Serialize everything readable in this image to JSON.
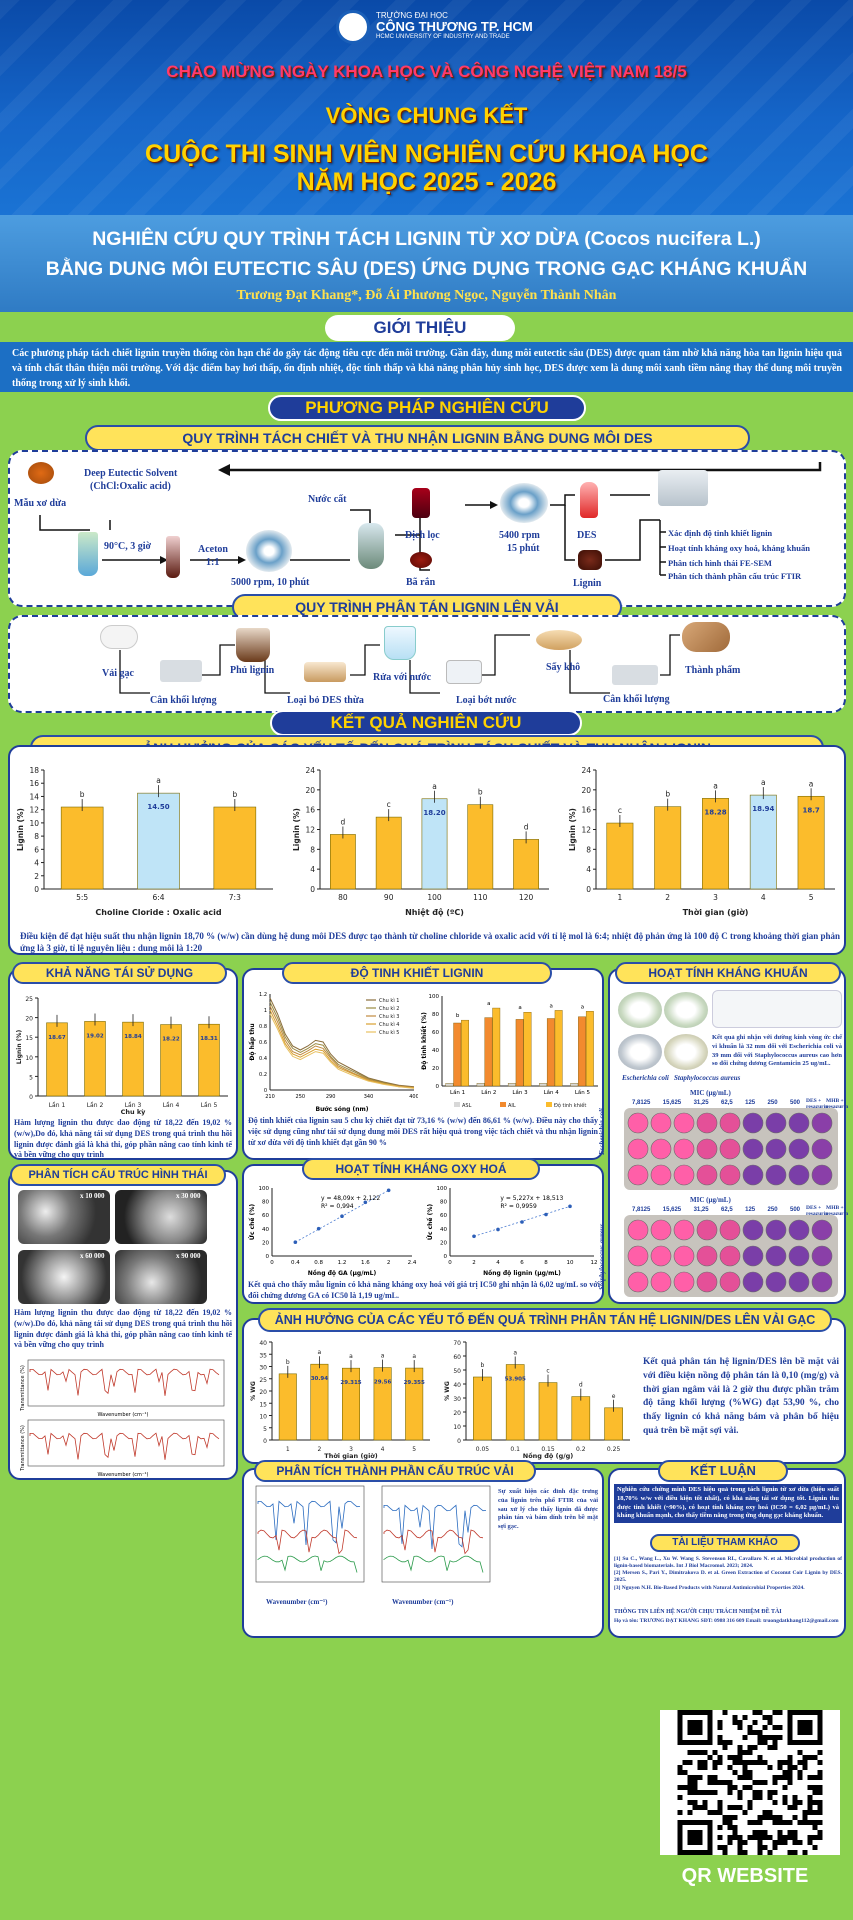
{
  "header": {
    "logo_line1": "TRƯỜNG ĐẠI HỌC",
    "logo_line2": "CÔNG THƯƠNG TP. HCM",
    "logo_line3": "HCMC UNIVERSITY OF INDUSTRY AND TRADE",
    "banner1": "CHÀO MỪNG NGÀY KHOA HỌC VÀ CÔNG NGHỆ VIỆT NAM 18/5",
    "banner2": "VÒNG CHUNG KẾT",
    "banner3": "CUỘC THI SINH VIÊN NGHIÊN CỨU KHOA HỌC",
    "banner4": "NĂM HỌC 2025 - 2026"
  },
  "title": {
    "line1": "NGHIÊN CỨU QUY TRÌNH TÁCH LIGNIN TỪ XƠ DỪA (Cocos nucifera L.)",
    "line2": "BẰNG DUNG MÔI EUTECTIC SÂU (DES) ỨNG DỤNG TRONG GẠC KHÁNG KHUẨN",
    "authors": "Trương Đạt Khang*, Đỗ Ái Phương Ngọc, Nguyễn Thành Nhân"
  },
  "intro": {
    "heading": "GIỚI THIỆU",
    "text": "Các phương pháp tách chiết lignin truyền thống còn hạn chế do gây tác động tiêu cực đến môi trường. Gần đây, dung môi eutectic sâu (DES) được quan tâm nhờ khả năng hòa tan lignin hiệu quả và tính chất thân thiện môi trường. Với đặc điểm bay hơi thấp, ổn định nhiệt, độc tính thấp và khả năng phân hủy sinh học, DES được xem là dung môi xanh tiềm năng thay thế dung môi truyền thống trong xử lý sinh khối."
  },
  "methods": {
    "heading": "PHƯƠNG PHÁP NGHIÊN CỨU",
    "sub1": "QUY TRÌNH TÁCH CHIẾT VÀ THU NHẬN LIGNIN BẰNG DUNG MÔI DES",
    "step_sample": "Mẫu xơ dừa",
    "step_des": "Deep Eutectic Solvent",
    "step_des2": "(ChCl:Oxalic acid)",
    "step_heat": "90°C, 3 giờ",
    "step_acetone": "Aceton",
    "step_ratio": "1:1",
    "step_centri1": "5000 rpm, 10 phút",
    "step_water": "Nước cất",
    "step_filtrate": "Dịch lọc",
    "step_residue": "Bã rắn",
    "step_centri2a": "5400 rpm",
    "step_centri2b": "15 phút",
    "step_des_rec": "DES",
    "step_lignin": "Lignin",
    "analysis": [
      "Xác định độ tinh khiết lignin",
      "Hoạt tính kháng oxy hoá, kháng khuẩn",
      "Phân tích hình thái FE-SEM",
      "Phân tích thành phần cấu trúc FTIR"
    ],
    "sub2": "QUY TRÌNH PHÂN TÁN LIGNIN LÊN VẢI",
    "d_gauze": "Vải gạc",
    "d_weigh1": "Cân khối lượng",
    "d_coat": "Phủ lignin",
    "d_remove": "Loại bỏ DES thừa",
    "d_wash": "Rửa với nước",
    "d_drain": "Loại bớt nước",
    "d_dry": "Sấy khô",
    "d_weigh2": "Cân khối lượng",
    "d_product": "Thành phẩm"
  },
  "results": {
    "heading": "KẾT QUẢ NGHIÊN CỨU",
    "sub1": "ẢNH HƯỞNG CỦA CÁC YẾU TỐ ĐẾN QUÁ TRÌNH TÁCH CHIẾT VÀ THU NHẬN LIGNIN",
    "caption1": "Điều kiện để đạt hiệu suất thu nhận lignin 18,70 % (w/w) cần dùng hệ dung môi DES được tạo thành từ choline chloride và oxalic acid với tỉ lệ mol là 6:4; nhiệt độ phản ứng là 100 độ C trong khoảng thời gian phản ứng là 3 giờ, tỉ lệ nguyên liệu : dung môi là 1:20",
    "reuse_heading": "KHẢ NĂNG TÁI SỬ DỤNG",
    "reuse_caption": "Hàm lượng lignin thu được dao động từ 18,22 đến 19,02 % (w/w),Do đó, khả năng tái sử dụng DES trong quá trình thu hồi lignin được đánh giá là khả thi, góp phần nâng cao tính kinh tế và bền vững cho quy trình",
    "purity_heading": "ĐỘ TINH KHIẾT LIGNIN",
    "purity_caption": "Độ tinh khiết của lignin sau 5 chu kỳ chiết đạt từ 73,16 % (w/w) đến 86,61 % (w/w). Điều này cho thấy việc sử dụng cũng như tái sử dụng dung môi DES rất hiệu quả trong việc tách chiết và thu nhận lignin từ xơ dừa với độ tinh khiết đạt gần 90 %",
    "antibac_heading": "HOẠT TÍNH KHÁNG KHUẨN",
    "antibac_caption": "Kết quả ghi nhận với đường kính vòng ức chế vi khuẩn là 32 mm đối với Escherichia coli và 39 mm đối với Staphylococcus aureus cao hơn so đối chứng dương Gentamicin 25 ug/mL.",
    "antibac_ecoli": "Escherichia coli",
    "antibac_saureus": "Staphylococcus aureus",
    "mic_label": "MIC (µg/mL)",
    "mic_conc": [
      "7,8125",
      "15,625",
      "31,25",
      "62,5",
      "125",
      "250",
      "500"
    ],
    "mic_des": "DES + resazurin",
    "mic_mhb": "MHB + resazurin",
    "sem_heading": "PHÂN TÍCH CẤU TRÚC HÌNH THÁI",
    "sem_mags": [
      "x 10 000",
      "x 30 000",
      "x 60 000",
      "x 90 000"
    ],
    "sem_caption": "Hàm lượng lignin thu được dao động từ 18,22 đến 19,02 % (w/w).Do đó, khả năng tái sử dụng DES trong quá trình thu hồi lignin được đánh giá là khả thi, góp phần nâng cao tính kinh tế và bền vững cho quy trình",
    "ftir_xlabel": "Wavenumber (cm⁻¹)",
    "ftir_ylabel": "Transmittance (%)",
    "antiox_heading": "HOẠT TÍNH KHÁNG OXY HOÁ",
    "antiox_caption": "Kết quả cho thấy mẫu lignin có khả năng kháng oxy hoá với giá trị IC50 ghi nhận là 6,02 ug/mL so với đối chứng dương GA có IC50 là 1,19 ug/mL.",
    "disp_heading": "ẢNH HƯỞNG CỦA CÁC YẾU TỐ ĐẾN QUÁ TRÌNH PHÂN TÁN HỆ LIGNIN/DES LÊN VẢI GẠC",
    "disp_caption": "Kết quả phân tán hệ lignin/DES lên bề mặt vải với điều kiện nồng độ phân tán là 0,10 (mg/g) và thời gian ngâm vải là 2 giờ thu được phần trăm độ tăng khối lượng (%WG) đạt 53,90 %, cho thấy lignin có khả năng bám và phân bố hiệu quả trên bề mặt sợi vải.",
    "fabric_heading": "PHÂN TÍCH THÀNH PHẦN CẤU TRÚC VẢI",
    "fabric_caption": "Sự xuất hiện các đỉnh đặc trưng của lignin trên phổ FTIR của vải sau xử lý cho thấy lignin đã được phân tán và bám dính trên bề mặt sợi gạc.",
    "fabric_xlabel": "Wavenumber (cm⁻¹)"
  },
  "conclusion": {
    "heading": "KẾT LUẬN",
    "text": "Nghiên cứu chứng minh DES hiệu quả trong tách lignin từ xơ dừa (hiệu suất 18,70% w/w với điều kiện tốt nhất), có khả năng tái sử dụng tốt. Lignin thu được tinh khiết (~90%), có hoạt tính kháng oxy hoá (IC50 = 6,02 µg/mL) và kháng khuẩn mạnh, cho thấy tiềm năng trong ứng dụng gạc kháng khuẩn.",
    "ref_heading": "TÀI LIỆU THAM KHẢO",
    "refs": "[1] Su C., Wang L., Xu W. Wang S. Stevenson RL, Cavallaro N. et al. Microbial production of lignin-based biomaterials. Int J Biol Macromol. 2023; 2024.\n[2] Mersen S., Pari Y., Dimitrakova D. et al. Green Extraction of Coconut Coir Lignin by DES. 2025.\n[3] Nguyen N.H. Bio-Based Products with Natural Antimicrobial Properties 2024.",
    "contact_title": "THÔNG TIN LIÊN HỆ NGƯỜI CHỊU TRÁCH NHIỆM ĐỀ TÀI",
    "contact": "Họ và tên: TRƯƠNG ĐẠT KHANG     SĐT: 0988 316 609     Email: truongdatkhang112@gmail.com"
  },
  "qr_label": "QR WEBSITE",
  "chart_data": [
    {
      "type": "bar",
      "xlabel": "Choline Cloride : Oxalic acid",
      "ylabel": "Lignin (%)",
      "categories": [
        "5:5",
        "6:4",
        "7:3"
      ],
      "values": [
        12.4,
        14.5,
        12.4
      ],
      "data_labels": [
        "",
        "14.50",
        ""
      ],
      "letters": [
        "b",
        "a",
        "b"
      ],
      "ylim": [
        0,
        18
      ],
      "yticks": [
        0,
        2,
        4,
        6,
        8,
        10,
        12,
        14,
        16,
        18
      ]
    },
    {
      "type": "bar",
      "xlabel": "Nhiệt độ (ºC)",
      "ylabel": "Lignin (%)",
      "categories": [
        "80",
        "90",
        "100",
        "110",
        "120"
      ],
      "values": [
        11,
        14.5,
        18.2,
        17,
        10
      ],
      "data_labels": [
        "",
        "",
        "18.20",
        "",
        ""
      ],
      "letters": [
        "d",
        "c",
        "a",
        "b",
        "d"
      ],
      "ylim": [
        0,
        24
      ],
      "yticks": [
        0,
        4,
        8,
        12,
        16,
        20,
        24
      ]
    },
    {
      "type": "bar",
      "xlabel": "Thời gian (giờ)",
      "ylabel": "Lignin (%)",
      "categories": [
        "1",
        "2",
        "3",
        "4",
        "5"
      ],
      "values": [
        13.3,
        16.6,
        18.28,
        18.94,
        18.7
      ],
      "data_labels": [
        "",
        "",
        "18.28",
        "18.94",
        "18.7"
      ],
      "letters": [
        "c",
        "b",
        "a",
        "a",
        "a"
      ],
      "ylim": [
        0,
        24
      ],
      "yticks": [
        0,
        4,
        8,
        12,
        16,
        20,
        24
      ]
    },
    {
      "type": "bar",
      "xlabel": "Chu kỳ",
      "ylabel": "Lignin (%)",
      "categories": [
        "Lần 1",
        "Lần 2",
        "Lần 3",
        "Lần 4",
        "Lần 5"
      ],
      "values": [
        18.67,
        19.02,
        18.84,
        18.22,
        18.31
      ],
      "data_labels": [
        "18.67",
        "19.02",
        "18.84",
        "18.22",
        "18.31"
      ],
      "ylim": [
        0,
        25
      ],
      "yticks": [
        0,
        5,
        10,
        15,
        20,
        25
      ]
    },
    {
      "type": "line",
      "xlabel": "Bước sóng (nm)",
      "ylabel": "Độ hấp thu",
      "x": [
        210,
        220,
        230,
        240,
        250,
        260,
        270,
        280,
        290,
        300,
        320,
        340,
        360,
        380,
        400
      ],
      "series": [
        {
          "name": "Chu kì 1",
          "values": [
            1.15,
            0.95,
            0.7,
            0.55,
            0.5,
            0.55,
            0.62,
            0.6,
            0.45,
            0.35,
            0.25,
            0.15,
            0.1,
            0.06,
            0.04
          ]
        },
        {
          "name": "Chu kì 2",
          "values": [
            1.1,
            0.9,
            0.66,
            0.52,
            0.47,
            0.52,
            0.58,
            0.56,
            0.42,
            0.32,
            0.23,
            0.14,
            0.09,
            0.05,
            0.03
          ]
        },
        {
          "name": "Chu kì 3",
          "values": [
            1.05,
            0.85,
            0.62,
            0.48,
            0.44,
            0.49,
            0.55,
            0.52,
            0.4,
            0.3,
            0.21,
            0.13,
            0.08,
            0.05,
            0.03
          ]
        },
        {
          "name": "Chu kì 4",
          "values": [
            1.0,
            0.8,
            0.58,
            0.45,
            0.41,
            0.46,
            0.51,
            0.49,
            0.37,
            0.28,
            0.2,
            0.12,
            0.08,
            0.04,
            0.03
          ]
        },
        {
          "name": "Chu kì 5",
          "values": [
            0.95,
            0.76,
            0.55,
            0.42,
            0.38,
            0.43,
            0.48,
            0.46,
            0.35,
            0.26,
            0.18,
            0.11,
            0.07,
            0.04,
            0.02
          ]
        }
      ],
      "ylim": [
        0,
        1.2
      ]
    },
    {
      "type": "bar",
      "ylabel": "Độ tinh khiết (%)",
      "categories": [
        "Lần 1",
        "Lần 2",
        "Lần 3",
        "Lần 4",
        "Lần 5"
      ],
      "series": [
        {
          "name": "ASL",
          "values": [
            3,
            3,
            3,
            3,
            3
          ]
        },
        {
          "name": "AIL",
          "values": [
            70,
            76,
            74,
            75,
            77
          ]
        },
        {
          "name": "Độ tinh khiết",
          "values": [
            73.16,
            86.61,
            82,
            84,
            83
          ]
        }
      ],
      "letters": [
        "b",
        "a",
        "a",
        "a",
        "a"
      ],
      "ylim": [
        0,
        100
      ],
      "yticks": [
        0,
        20,
        40,
        60,
        80,
        100
      ]
    },
    {
      "type": "scatter",
      "xlabel": "Nồng độ GA (µg/mL)",
      "ylabel": "Ức chế (%)",
      "x": [
        0.4,
        0.8,
        1.2,
        1.6,
        2.0
      ],
      "values": [
        20.3,
        40.2,
        58.5,
        78.9,
        96.6
      ],
      "fit": "y = 48,09x + 2,122",
      "r2": "R² = 0,994",
      "xlim": [
        0,
        2.4
      ],
      "ylim": [
        0,
        100
      ]
    },
    {
      "type": "scatter",
      "xlabel": "Nồng độ lignin (µg/mL)",
      "ylabel": "Ức chế (%)",
      "x": [
        2,
        4,
        6,
        8,
        10
      ],
      "values": [
        29,
        39,
        50,
        61,
        73
      ],
      "fit": "y = 5,227x + 18,513",
      "r2": "R² = 0,9959",
      "xlim": [
        0,
        12
      ],
      "ylim": [
        0,
        100
      ]
    },
    {
      "type": "bar",
      "xlabel": "Thời gian (giờ)",
      "ylabel": "% WG",
      "categories": [
        "1",
        "2",
        "3",
        "4",
        "5"
      ],
      "values": [
        27,
        30.94,
        29.315,
        29.56,
        29.355
      ],
      "data_labels": [
        "",
        "30.94",
        "29.315",
        "29.56",
        "29.355"
      ],
      "letters": [
        "b",
        "a",
        "a",
        "a",
        "a"
      ],
      "ylim": [
        0,
        40
      ],
      "yticks": [
        0,
        5,
        10,
        15,
        20,
        25,
        30,
        35,
        40
      ]
    },
    {
      "type": "bar",
      "xlabel": "Nồng độ (g/g)",
      "ylabel": "% WG",
      "categories": [
        "0.05",
        "0.1",
        "0.15",
        "0.2",
        "0.25"
      ],
      "values": [
        45,
        53.905,
        41,
        31,
        23
      ],
      "data_labels": [
        "",
        "53.905",
        "",
        "",
        ""
      ],
      "letters": [
        "b",
        "a",
        "c",
        "d",
        "e"
      ],
      "ylim": [
        0,
        70
      ],
      "yticks": [
        0,
        10,
        20,
        30,
        40,
        50,
        60,
        70
      ]
    }
  ],
  "colors": {
    "primary": "#1f3d9a",
    "accent": "#ffd200",
    "bar_main": "#fbbc2c",
    "bar_best": "#bfe4f7",
    "bg_green": "#8cd14f"
  }
}
